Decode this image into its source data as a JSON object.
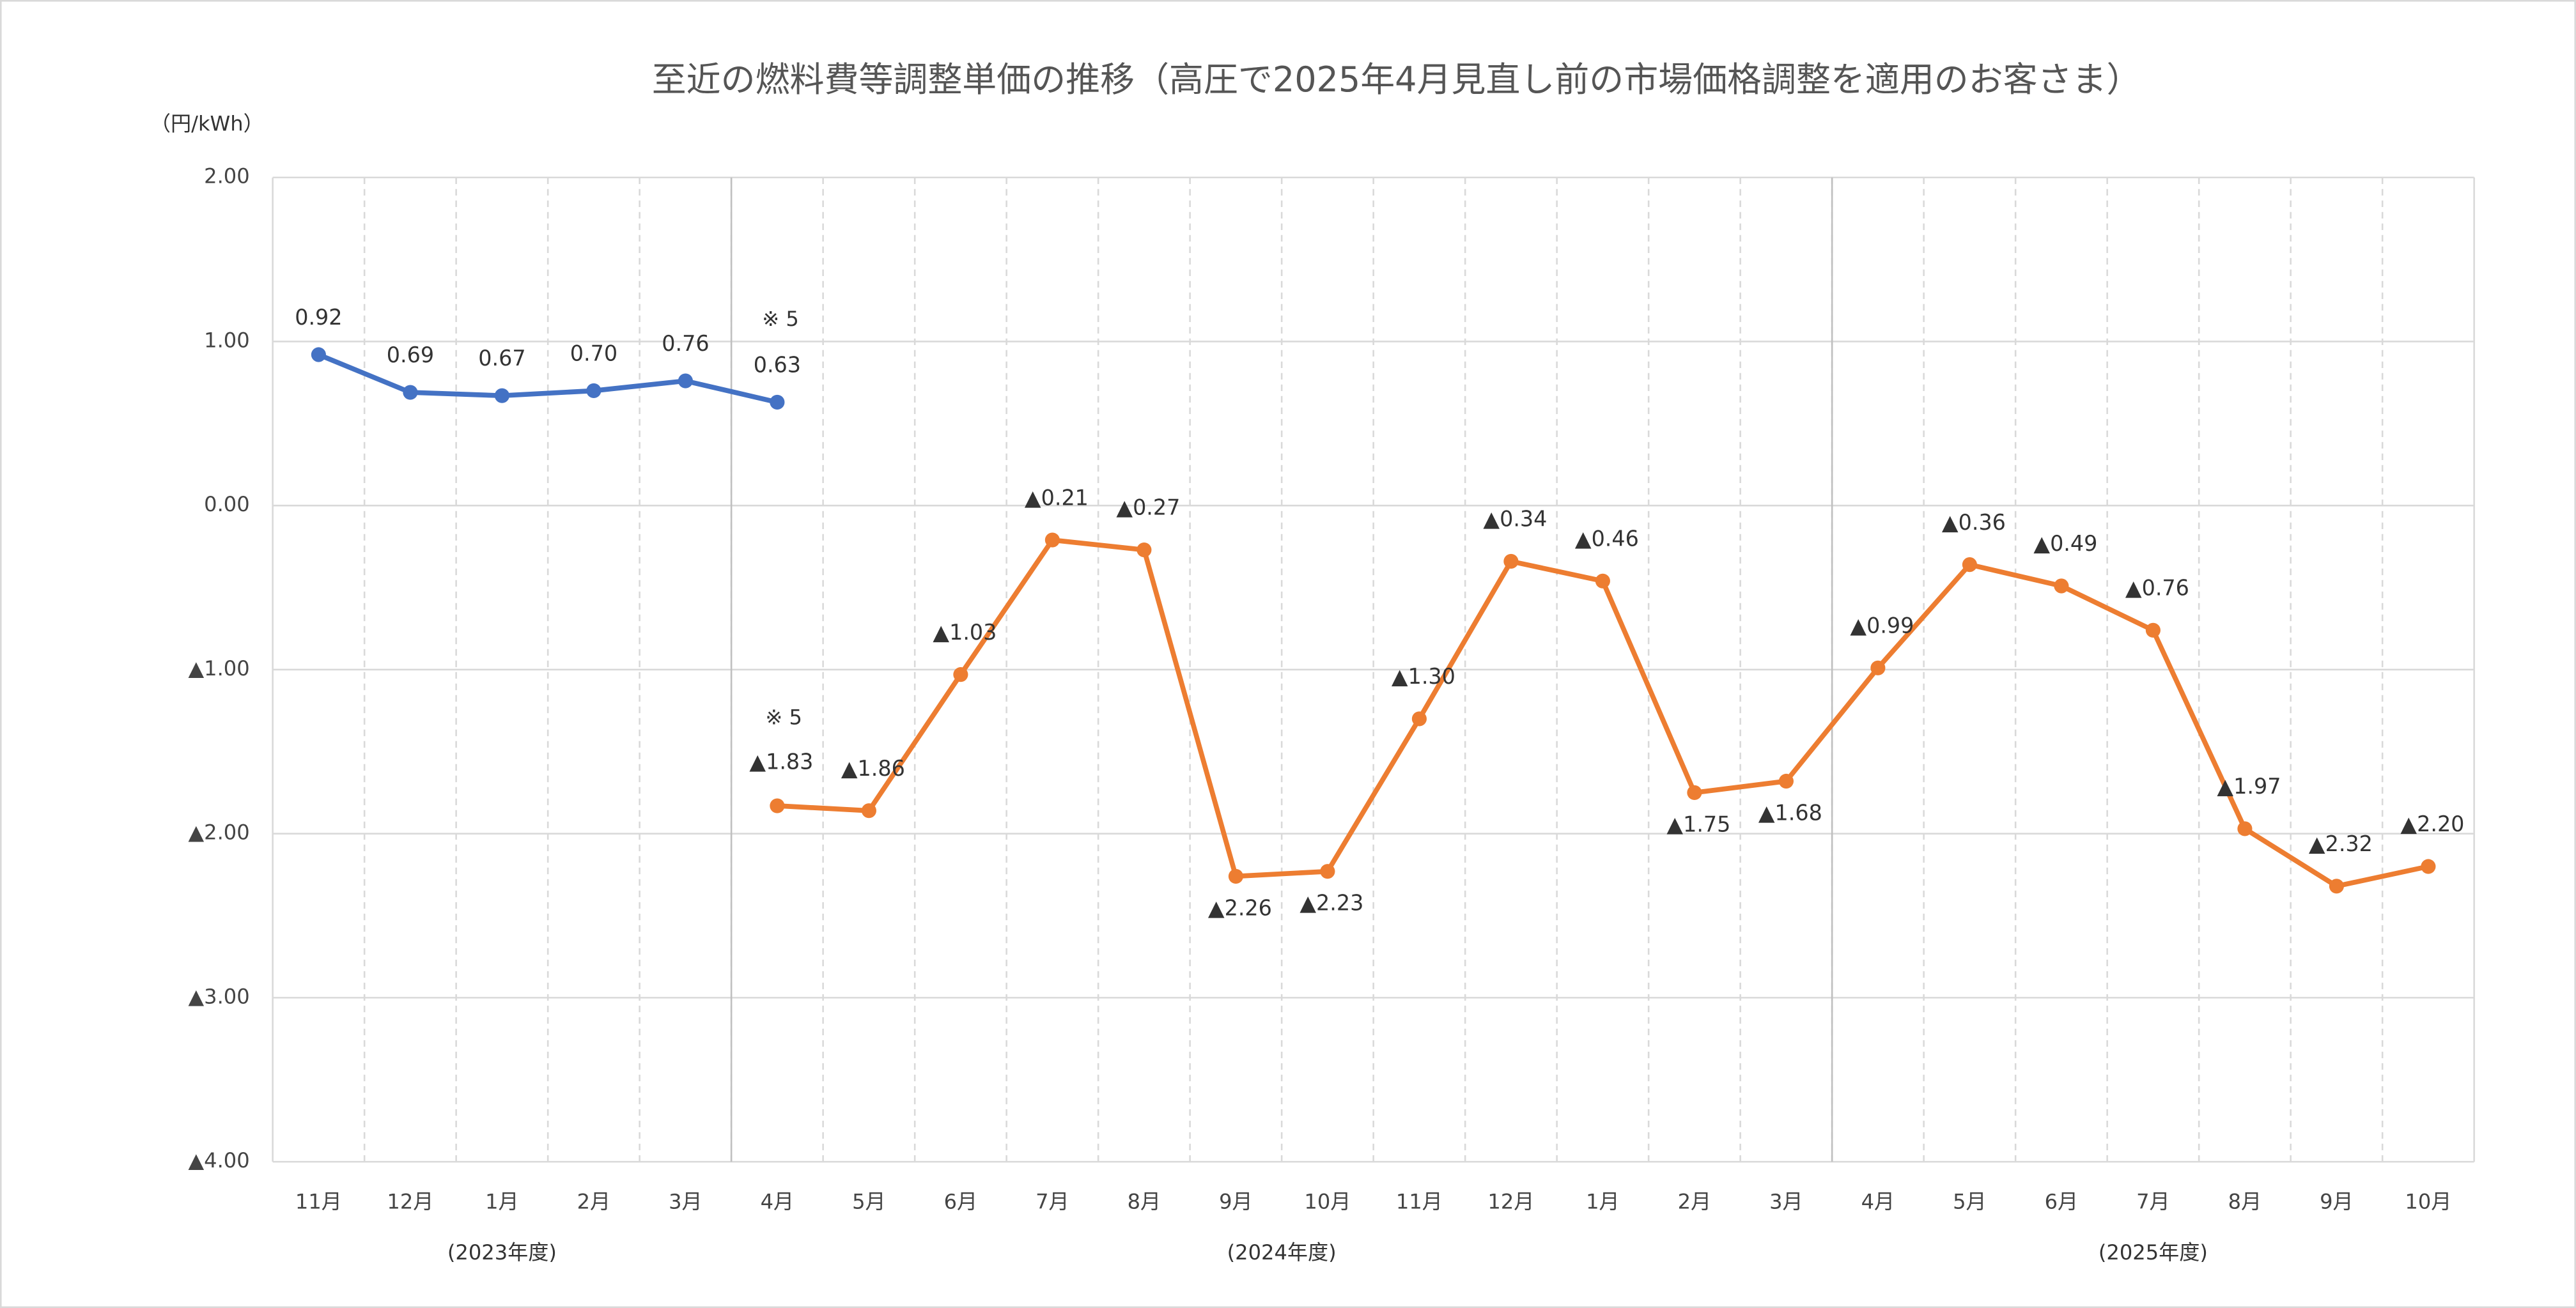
{
  "chart_data": {
    "type": "line",
    "title": "至近の燃料費等調整単価の推移（高圧で2025年4月見直し前の市場価格調整を適用のお客さま）",
    "y_label": "（円/kWh）",
    "categories": [
      "11月",
      "12月",
      "1月",
      "2月",
      "3月",
      "4月",
      "5月",
      "6月",
      "7月",
      "8月",
      "9月",
      "10月",
      "11月",
      "12月",
      "1月",
      "2月",
      "3月",
      "4月",
      "5月",
      "6月",
      "7月",
      "8月",
      "9月",
      "10月"
    ],
    "groups": [
      "(2023年度)",
      "(2024年度)",
      "(2025年度)"
    ],
    "annotations": [
      "※ 5",
      "※ 5"
    ],
    "series": [
      {
        "color": "#4472c4",
        "values": [
          0.92,
          0.69,
          0.67,
          0.7,
          0.76,
          0.63,
          null,
          null,
          null,
          null,
          null,
          null,
          null,
          null,
          null,
          null,
          null,
          null,
          null,
          null,
          null,
          null,
          null,
          null
        ],
        "value_labels": [
          "0.92",
          "0.69",
          "0.67",
          "0.70",
          "0.76",
          "0.63",
          null,
          null,
          null,
          null,
          null,
          null,
          null,
          null,
          null,
          null,
          null,
          null,
          null,
          null,
          null,
          null,
          null,
          null
        ]
      },
      {
        "color": "#ed7d31",
        "values": [
          null,
          null,
          null,
          null,
          null,
          -1.83,
          -1.86,
          -1.03,
          -0.21,
          -0.27,
          -2.26,
          -2.23,
          -1.3,
          -0.34,
          -0.46,
          -1.75,
          -1.68,
          -0.99,
          -0.36,
          -0.49,
          -0.76,
          -1.97,
          -2.32,
          -2.2
        ],
        "value_labels": [
          null,
          null,
          null,
          null,
          null,
          "▲1.83",
          "▲1.86",
          "▲1.03",
          "▲0.21",
          "▲0.27",
          "▲2.26",
          "▲2.23",
          "▲1.30",
          "▲0.34",
          "▲0.46",
          "▲1.75",
          "▲1.68",
          "▲0.99",
          "▲0.36",
          "▲0.49",
          "▲0.76",
          "▲1.97",
          "▲2.32",
          "▲2.20"
        ]
      }
    ],
    "ylim": [
      -4,
      2
    ],
    "yticks": [
      {
        "value": 2,
        "label": "2.00"
      },
      {
        "value": 1,
        "label": "1.00"
      },
      {
        "value": 0,
        "label": "0.00"
      },
      {
        "value": -1,
        "label": "▲1.00"
      },
      {
        "value": -2,
        "label": "▲2.00"
      },
      {
        "value": -3,
        "label": "▲3.00"
      },
      {
        "value": -4,
        "label": "▲4.00"
      }
    ],
    "grid": true
  }
}
